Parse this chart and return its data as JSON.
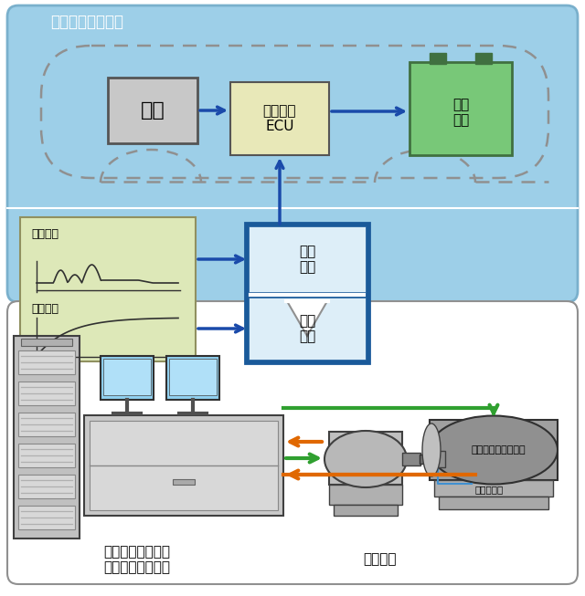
{
  "title": "虚拟电动车辆模型",
  "box_motor_text": "电机",
  "box_ecu_text": "电动车用\nECU",
  "box_battery_text": "电池\n模型",
  "box_vehicle_text": "车辆\n模型",
  "box_drive_text": "驱动\n模型",
  "box_input_text_top": "行驶模式",
  "box_input_text_bot": "行驶阻力",
  "label_system": "车辆模拟仿真系统\n操作测量控制装置",
  "label_motor_test": "被测电机",
  "label_torque": "扭矩传感器",
  "label_low_inertia": "低惯性（发电）电机",
  "top_bg": "#9dcfe8",
  "top_bg_edge": "#7ab0cc",
  "motor_box_fc": "#c8c8c8",
  "motor_box_ec": "#555555",
  "ecu_box_fc": "#e8e8b8",
  "ecu_box_ec": "#555555",
  "battery_box_fc": "#78c878",
  "battery_box_ec": "#407040",
  "battery_term_fc": "#407040",
  "vd_outer_fc": "#1a5a9a",
  "vd_outer_ec": "#1a5a9a",
  "vm_inner_fc": "#ddeef8",
  "dm_inner_fc": "#ddeef8",
  "input_box_fc": "#dde8b8",
  "input_box_ec": "#909060",
  "arrow_blue": "#1a4aaa",
  "arrow_orange": "#e06800",
  "arrow_green": "#30a030",
  "white_line": "#ffffff",
  "sep_line": "#c0c0d8",
  "rack_fc": "#c0c0c0",
  "rack_ec": "#404040",
  "slot_fc": "#d8d8d8",
  "slot_line": "#b0b0b0",
  "desk_fc": "#c8c8c8",
  "desk_ec": "#404040",
  "monitor_fc": "#90d0f0",
  "monitor_ec": "#303030",
  "motor_fc": "#a0a0a0",
  "gen_fc": "#888888",
  "gen_ec": "#303030",
  "bottom_bg": "#ffffff",
  "callout_edge": "#909090",
  "blue_line": "#4090d0"
}
